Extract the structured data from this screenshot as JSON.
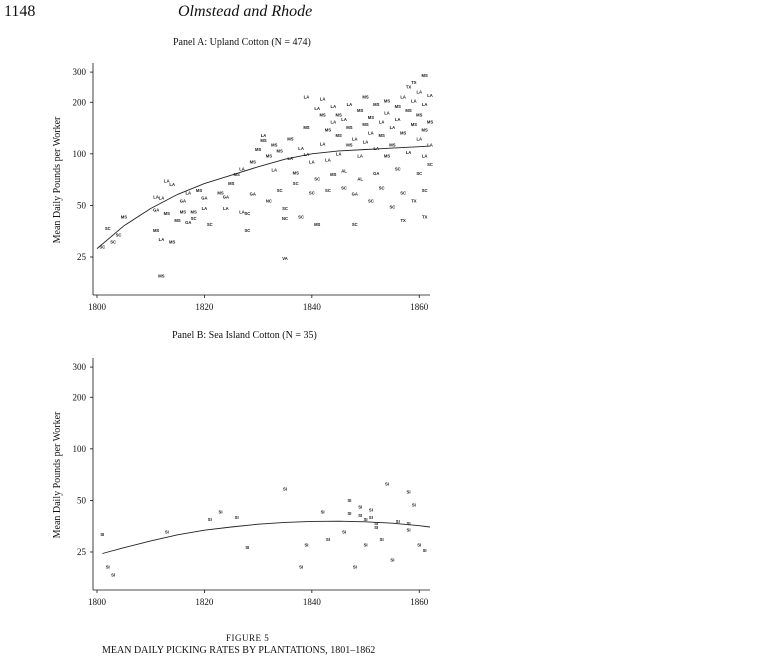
{
  "header": {
    "page_number": "1148",
    "running_head": "Olmstead and Rhode"
  },
  "figure": {
    "label": "FIGURE 5",
    "caption": "MEAN DAILY PICKING RATES BY PLANTATIONS, 1801–1862"
  },
  "chart_data": [
    {
      "type": "scatter",
      "title": "Panel A: Upland Cotton (N = 474)",
      "xlabel": "",
      "ylabel": "Mean Daily Pounds per Worker",
      "xlim": [
        1800,
        1862
      ],
      "ylim": [
        15,
        330
      ],
      "yscale": "log",
      "x_ticks": [
        1800,
        1820,
        1840,
        1860
      ],
      "y_ticks": [
        25,
        50,
        100,
        200,
        300
      ],
      "grid": false,
      "point_labels_meaning": "state abbreviation",
      "points": [
        {
          "x": 1801,
          "y": 28,
          "label": "SC"
        },
        {
          "x": 1802,
          "y": 36,
          "label": "SC"
        },
        {
          "x": 1803,
          "y": 30,
          "label": "SC"
        },
        {
          "x": 1804,
          "y": 33,
          "label": "SC"
        },
        {
          "x": 1805,
          "y": 42,
          "label": "MS"
        },
        {
          "x": 1811,
          "y": 35,
          "label": "MS"
        },
        {
          "x": 1811,
          "y": 55,
          "label": "LA"
        },
        {
          "x": 1812,
          "y": 54,
          "label": "LA"
        },
        {
          "x": 1811,
          "y": 46,
          "label": "GA"
        },
        {
          "x": 1812,
          "y": 31,
          "label": "LA"
        },
        {
          "x": 1812,
          "y": 19,
          "label": "MS"
        },
        {
          "x": 1813,
          "y": 44,
          "label": "MS"
        },
        {
          "x": 1813,
          "y": 68,
          "label": "LA"
        },
        {
          "x": 1814,
          "y": 65,
          "label": "LA"
        },
        {
          "x": 1814,
          "y": 30,
          "label": "MS"
        },
        {
          "x": 1815,
          "y": 40,
          "label": "MS"
        },
        {
          "x": 1816,
          "y": 52,
          "label": "GA"
        },
        {
          "x": 1816,
          "y": 45,
          "label": "MS"
        },
        {
          "x": 1817,
          "y": 39,
          "label": "GA"
        },
        {
          "x": 1817,
          "y": 58,
          "label": "LA"
        },
        {
          "x": 1818,
          "y": 45,
          "label": "MS"
        },
        {
          "x": 1818,
          "y": 41,
          "label": "SC"
        },
        {
          "x": 1819,
          "y": 60,
          "label": "MS"
        },
        {
          "x": 1820,
          "y": 47,
          "label": "LA"
        },
        {
          "x": 1820,
          "y": 54,
          "label": "GA"
        },
        {
          "x": 1821,
          "y": 38,
          "label": "SC"
        },
        {
          "x": 1823,
          "y": 58,
          "label": "MS"
        },
        {
          "x": 1824,
          "y": 55,
          "label": "GA"
        },
        {
          "x": 1824,
          "y": 47,
          "label": "LA"
        },
        {
          "x": 1825,
          "y": 66,
          "label": "MS"
        },
        {
          "x": 1826,
          "y": 74,
          "label": "MS"
        },
        {
          "x": 1827,
          "y": 45,
          "label": "LA"
        },
        {
          "x": 1827,
          "y": 80,
          "label": "LA"
        },
        {
          "x": 1828,
          "y": 44,
          "label": "SC"
        },
        {
          "x": 1828,
          "y": 35,
          "label": "SC"
        },
        {
          "x": 1829,
          "y": 88,
          "label": "MS"
        },
        {
          "x": 1829,
          "y": 57,
          "label": "GA"
        },
        {
          "x": 1830,
          "y": 104,
          "label": "MS"
        },
        {
          "x": 1831,
          "y": 125,
          "label": "LA"
        },
        {
          "x": 1831,
          "y": 117,
          "label": "MS"
        },
        {
          "x": 1832,
          "y": 95,
          "label": "MS"
        },
        {
          "x": 1832,
          "y": 52,
          "label": "NC"
        },
        {
          "x": 1833,
          "y": 79,
          "label": "LA"
        },
        {
          "x": 1833,
          "y": 110,
          "label": "MS"
        },
        {
          "x": 1834,
          "y": 60,
          "label": "SC"
        },
        {
          "x": 1834,
          "y": 102,
          "label": "MS"
        },
        {
          "x": 1835,
          "y": 47,
          "label": "SC"
        },
        {
          "x": 1835,
          "y": 41,
          "label": "NC"
        },
        {
          "x": 1835,
          "y": 24,
          "label": "VA"
        },
        {
          "x": 1836,
          "y": 120,
          "label": "MS"
        },
        {
          "x": 1836,
          "y": 92,
          "label": "LA"
        },
        {
          "x": 1837,
          "y": 76,
          "label": "MS"
        },
        {
          "x": 1837,
          "y": 66,
          "label": "SC"
        },
        {
          "x": 1838,
          "y": 42,
          "label": "SC"
        },
        {
          "x": 1838,
          "y": 105,
          "label": "LA"
        },
        {
          "x": 1839,
          "y": 140,
          "label": "MS"
        },
        {
          "x": 1839,
          "y": 97,
          "label": "LA"
        },
        {
          "x": 1839,
          "y": 210,
          "label": "LA"
        },
        {
          "x": 1840,
          "y": 88,
          "label": "LA"
        },
        {
          "x": 1840,
          "y": 58,
          "label": "SC"
        },
        {
          "x": 1841,
          "y": 180,
          "label": "LA"
        },
        {
          "x": 1841,
          "y": 70,
          "label": "SC"
        },
        {
          "x": 1841,
          "y": 38,
          "label": "MS"
        },
        {
          "x": 1842,
          "y": 165,
          "label": "MS"
        },
        {
          "x": 1842,
          "y": 112,
          "label": "LA"
        },
        {
          "x": 1842,
          "y": 205,
          "label": "LA"
        },
        {
          "x": 1843,
          "y": 135,
          "label": "MS"
        },
        {
          "x": 1843,
          "y": 90,
          "label": "LA"
        },
        {
          "x": 1843,
          "y": 60,
          "label": "SC"
        },
        {
          "x": 1844,
          "y": 150,
          "label": "LA"
        },
        {
          "x": 1844,
          "y": 185,
          "label": "LA"
        },
        {
          "x": 1844,
          "y": 74,
          "label": "MS"
        },
        {
          "x": 1845,
          "y": 125,
          "label": "MS"
        },
        {
          "x": 1845,
          "y": 98,
          "label": "LA"
        },
        {
          "x": 1845,
          "y": 165,
          "label": "MS"
        },
        {
          "x": 1846,
          "y": 155,
          "label": "LA"
        },
        {
          "x": 1846,
          "y": 78,
          "label": "AL"
        },
        {
          "x": 1846,
          "y": 62,
          "label": "SC"
        },
        {
          "x": 1847,
          "y": 140,
          "label": "MS"
        },
        {
          "x": 1847,
          "y": 110,
          "label": "MS"
        },
        {
          "x": 1847,
          "y": 190,
          "label": "LA"
        },
        {
          "x": 1848,
          "y": 120,
          "label": "LA"
        },
        {
          "x": 1848,
          "y": 38,
          "label": "SC"
        },
        {
          "x": 1848,
          "y": 57,
          "label": "GA"
        },
        {
          "x": 1849,
          "y": 175,
          "label": "MS"
        },
        {
          "x": 1849,
          "y": 95,
          "label": "LA"
        },
        {
          "x": 1849,
          "y": 70,
          "label": "AL"
        },
        {
          "x": 1850,
          "y": 145,
          "label": "MS"
        },
        {
          "x": 1850,
          "y": 115,
          "label": "LA"
        },
        {
          "x": 1850,
          "y": 210,
          "label": "MS"
        },
        {
          "x": 1851,
          "y": 130,
          "label": "LA"
        },
        {
          "x": 1851,
          "y": 160,
          "label": "MS"
        },
        {
          "x": 1851,
          "y": 52,
          "label": "SC"
        },
        {
          "x": 1852,
          "y": 190,
          "label": "MS"
        },
        {
          "x": 1852,
          "y": 105,
          "label": "LA"
        },
        {
          "x": 1852,
          "y": 75,
          "label": "GA"
        },
        {
          "x": 1853,
          "y": 150,
          "label": "LA"
        },
        {
          "x": 1853,
          "y": 125,
          "label": "MS"
        },
        {
          "x": 1853,
          "y": 62,
          "label": "SC"
        },
        {
          "x": 1854,
          "y": 200,
          "label": "MS"
        },
        {
          "x": 1854,
          "y": 170,
          "label": "LA"
        },
        {
          "x": 1854,
          "y": 95,
          "label": "MS"
        },
        {
          "x": 1855,
          "y": 140,
          "label": "LA"
        },
        {
          "x": 1855,
          "y": 110,
          "label": "MS"
        },
        {
          "x": 1855,
          "y": 48,
          "label": "SC"
        },
        {
          "x": 1856,
          "y": 185,
          "label": "MS"
        },
        {
          "x": 1856,
          "y": 155,
          "label": "LA"
        },
        {
          "x": 1856,
          "y": 80,
          "label": "SC"
        },
        {
          "x": 1857,
          "y": 210,
          "label": "LA"
        },
        {
          "x": 1857,
          "y": 130,
          "label": "MS"
        },
        {
          "x": 1857,
          "y": 58,
          "label": "SC"
        },
        {
          "x": 1857,
          "y": 40,
          "label": "TX"
        },
        {
          "x": 1858,
          "y": 240,
          "label": "TX"
        },
        {
          "x": 1858,
          "y": 175,
          "label": "MS"
        },
        {
          "x": 1858,
          "y": 100,
          "label": "LA"
        },
        {
          "x": 1859,
          "y": 255,
          "label": "TX"
        },
        {
          "x": 1859,
          "y": 200,
          "label": "LA"
        },
        {
          "x": 1859,
          "y": 145,
          "label": "MS"
        },
        {
          "x": 1859,
          "y": 52,
          "label": "TX"
        },
        {
          "x": 1860,
          "y": 225,
          "label": "LA"
        },
        {
          "x": 1860,
          "y": 165,
          "label": "MS"
        },
        {
          "x": 1860,
          "y": 120,
          "label": "LA"
        },
        {
          "x": 1860,
          "y": 75,
          "label": "SC"
        },
        {
          "x": 1861,
          "y": 280,
          "label": "MS"
        },
        {
          "x": 1861,
          "y": 190,
          "label": "LA"
        },
        {
          "x": 1861,
          "y": 135,
          "label": "MS"
        },
        {
          "x": 1861,
          "y": 95,
          "label": "LA"
        },
        {
          "x": 1861,
          "y": 60,
          "label": "SC"
        },
        {
          "x": 1861,
          "y": 42,
          "label": "TX"
        },
        {
          "x": 1862,
          "y": 215,
          "label": "LA"
        },
        {
          "x": 1862,
          "y": 150,
          "label": "MS"
        },
        {
          "x": 1862,
          "y": 110,
          "label": "LA"
        },
        {
          "x": 1862,
          "y": 85,
          "label": "SC"
        }
      ],
      "trend": [
        {
          "x": 1800,
          "y": 28
        },
        {
          "x": 1805,
          "y": 38
        },
        {
          "x": 1810,
          "y": 48
        },
        {
          "x": 1815,
          "y": 58
        },
        {
          "x": 1820,
          "y": 67
        },
        {
          "x": 1825,
          "y": 75
        },
        {
          "x": 1830,
          "y": 84
        },
        {
          "x": 1835,
          "y": 93
        },
        {
          "x": 1840,
          "y": 100
        },
        {
          "x": 1845,
          "y": 104
        },
        {
          "x": 1850,
          "y": 106
        },
        {
          "x": 1855,
          "y": 108
        },
        {
          "x": 1860,
          "y": 110
        },
        {
          "x": 1862,
          "y": 111
        }
      ]
    },
    {
      "type": "scatter",
      "title": "Panel B: Sea Island Cotton (N = 35)",
      "xlabel": "",
      "ylabel": "Mean Daily Pounds per Worker",
      "xlim": [
        1800,
        1862
      ],
      "ylim": [
        15,
        330
      ],
      "yscale": "log",
      "x_ticks": [
        1800,
        1820,
        1840,
        1860
      ],
      "y_ticks": [
        25,
        50,
        100,
        200,
        300
      ],
      "grid": false,
      "point_labels_meaning": "state abbreviation",
      "points": [
        {
          "x": 1801,
          "y": 31,
          "label": "SI"
        },
        {
          "x": 1802,
          "y": 20,
          "label": "SI"
        },
        {
          "x": 1803,
          "y": 18,
          "label": "SI"
        },
        {
          "x": 1813,
          "y": 32,
          "label": "SI"
        },
        {
          "x": 1821,
          "y": 38,
          "label": "SI"
        },
        {
          "x": 1823,
          "y": 42,
          "label": "SI"
        },
        {
          "x": 1826,
          "y": 39,
          "label": "SI"
        },
        {
          "x": 1828,
          "y": 26,
          "label": "SI"
        },
        {
          "x": 1835,
          "y": 57,
          "label": "SI"
        },
        {
          "x": 1838,
          "y": 20,
          "label": "SI"
        },
        {
          "x": 1839,
          "y": 27,
          "label": "SI"
        },
        {
          "x": 1842,
          "y": 42,
          "label": "SI"
        },
        {
          "x": 1843,
          "y": 29,
          "label": "SI"
        },
        {
          "x": 1846,
          "y": 32,
          "label": "SI"
        },
        {
          "x": 1847,
          "y": 49,
          "label": "SI"
        },
        {
          "x": 1847,
          "y": 41,
          "label": "SI"
        },
        {
          "x": 1848,
          "y": 20,
          "label": "SI"
        },
        {
          "x": 1849,
          "y": 40,
          "label": "SI"
        },
        {
          "x": 1849,
          "y": 45,
          "label": "SI"
        },
        {
          "x": 1850,
          "y": 38,
          "label": "SI"
        },
        {
          "x": 1850,
          "y": 27,
          "label": "SI"
        },
        {
          "x": 1851,
          "y": 43,
          "label": "SI"
        },
        {
          "x": 1851,
          "y": 39,
          "label": "SI"
        },
        {
          "x": 1852,
          "y": 36,
          "label": "SI"
        },
        {
          "x": 1852,
          "y": 34,
          "label": "SI"
        },
        {
          "x": 1853,
          "y": 29,
          "label": "SI"
        },
        {
          "x": 1854,
          "y": 61,
          "label": "SI"
        },
        {
          "x": 1855,
          "y": 22,
          "label": "SI"
        },
        {
          "x": 1856,
          "y": 37,
          "label": "SI"
        },
        {
          "x": 1858,
          "y": 55,
          "label": "SI"
        },
        {
          "x": 1858,
          "y": 33,
          "label": "SI"
        },
        {
          "x": 1859,
          "y": 46,
          "label": "SI"
        },
        {
          "x": 1860,
          "y": 27,
          "label": "SI"
        },
        {
          "x": 1861,
          "y": 25,
          "label": "SI"
        },
        {
          "x": 1858,
          "y": 36,
          "label": "SI"
        }
      ],
      "trend": [
        {
          "x": 1801,
          "y": 24.5
        },
        {
          "x": 1805,
          "y": 26.5
        },
        {
          "x": 1810,
          "y": 29
        },
        {
          "x": 1815,
          "y": 31.5
        },
        {
          "x": 1820,
          "y": 33.5
        },
        {
          "x": 1825,
          "y": 35
        },
        {
          "x": 1830,
          "y": 36.3
        },
        {
          "x": 1835,
          "y": 37.2
        },
        {
          "x": 1840,
          "y": 37.7
        },
        {
          "x": 1845,
          "y": 37.8
        },
        {
          "x": 1850,
          "y": 37.5
        },
        {
          "x": 1855,
          "y": 36.8
        },
        {
          "x": 1860,
          "y": 35.6
        },
        {
          "x": 1862,
          "y": 35
        }
      ]
    }
  ]
}
